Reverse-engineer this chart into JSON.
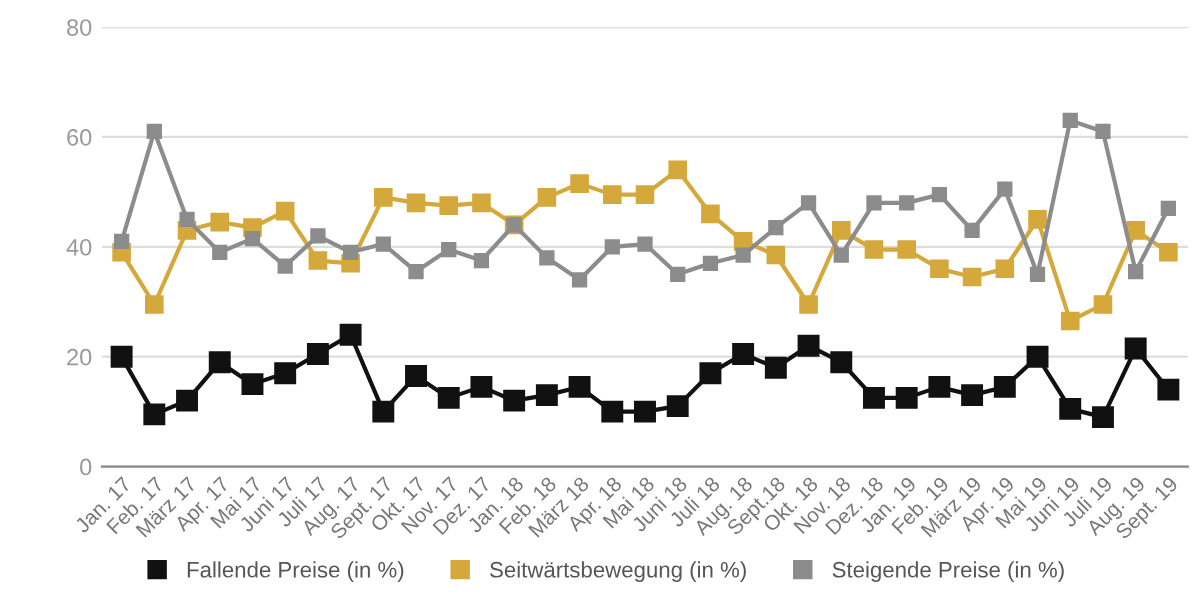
{
  "chart_data": {
    "type": "line",
    "categories": [
      "Jan. 17",
      "Feb. 17",
      "März 17",
      "Apr. 17",
      "Mai 17",
      "Juni 17",
      "Juli 17",
      "Aug. 17",
      "Sept. 17",
      "Okt. 17",
      "Nov. 17",
      "Dez. 17",
      "Jan. 18",
      "Feb. 18",
      "März 18",
      "Apr. 18",
      "Mai 18",
      "Juni 18",
      "Juli 18",
      "Aug. 18",
      "Sept.18",
      "Okt. 18",
      "Nov. 18",
      "Dez. 18",
      "Jan. 19",
      "Feb. 19",
      "März 19",
      "Apr. 19",
      "Mai 19",
      "Juni 19",
      "Juli 19",
      "Aug. 19",
      "Sept. 19"
    ],
    "series": [
      {
        "name": "Fallende Preise (in %)",
        "color": "#111111",
        "values": [
          20,
          9.5,
          12,
          19,
          15,
          17,
          20.5,
          24,
          10,
          16.5,
          12.5,
          14.5,
          12,
          13,
          14.5,
          10,
          10,
          11,
          17,
          20.5,
          18,
          22,
          19,
          12.5,
          12.5,
          14.5,
          13,
          14.5,
          20,
          10.5,
          9,
          21.5,
          14
        ]
      },
      {
        "name": "Seitwärtsbewegung (in %)",
        "color": "#d4a83a",
        "values": [
          39,
          29.5,
          43,
          44.5,
          43.5,
          46.5,
          37.5,
          37,
          49,
          48,
          47.5,
          48,
          44,
          49,
          51.5,
          49.5,
          49.5,
          54,
          46,
          41,
          38.5,
          29.5,
          43,
          39.5,
          39.5,
          36,
          34.5,
          36,
          45,
          26.5,
          29.5,
          43,
          39
        ]
      },
      {
        "name": "Steigende Preise (in %)",
        "color": "#8c8c8c",
        "values": [
          41,
          61,
          45,
          39,
          41.5,
          36.5,
          42,
          39,
          40.5,
          35.5,
          39.5,
          37.5,
          44,
          38,
          34,
          40,
          40.5,
          35,
          37,
          38.5,
          43.5,
          48,
          38.5,
          48,
          48,
          49.5,
          43,
          50.5,
          35,
          63,
          61,
          35.5,
          47
        ]
      }
    ],
    "ylim": [
      0,
      80
    ],
    "yticks": [
      0,
      20,
      40,
      60,
      80
    ],
    "grid": "y",
    "legend": "bottom",
    "marker": "square",
    "line_style": "solid"
  }
}
